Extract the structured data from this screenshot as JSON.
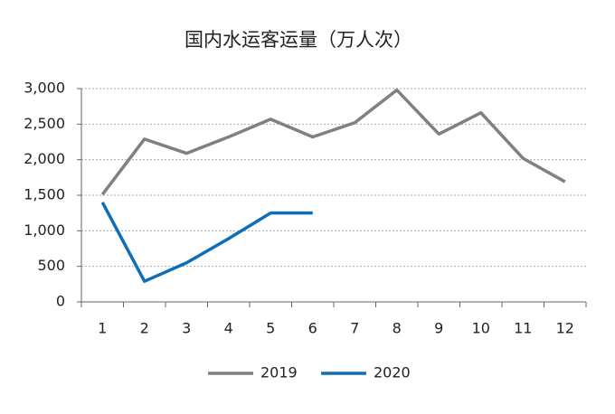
{
  "chart_data": {
    "type": "line",
    "title": "国内水运客运量（万人次）",
    "categories": [
      "1",
      "2",
      "3",
      "4",
      "5",
      "6",
      "7",
      "8",
      "9",
      "10",
      "11",
      "12"
    ],
    "series": [
      {
        "name": "2019",
        "color": "#808080",
        "values": [
          1510,
          2290,
          2090,
          2320,
          2570,
          2320,
          2520,
          2980,
          2360,
          2660,
          2020,
          1690
        ]
      },
      {
        "name": "2020",
        "color": "#0e6eb8",
        "values": [
          1400,
          290,
          550,
          890,
          1250,
          1250,
          null,
          null,
          null,
          null,
          null,
          null
        ]
      }
    ],
    "ylim": [
      0,
      3000
    ],
    "yticks": [
      0,
      500,
      {
        "value": 1000,
        "label": "1,000"
      },
      {
        "value": 1500,
        "label": "1,500"
      },
      {
        "value": 2000,
        "label": "2,000"
      },
      {
        "value": 2500,
        "label": "2,500"
      },
      {
        "value": 3000,
        "label": "3,000"
      }
    ],
    "grid": true,
    "legend": "bottom"
  }
}
